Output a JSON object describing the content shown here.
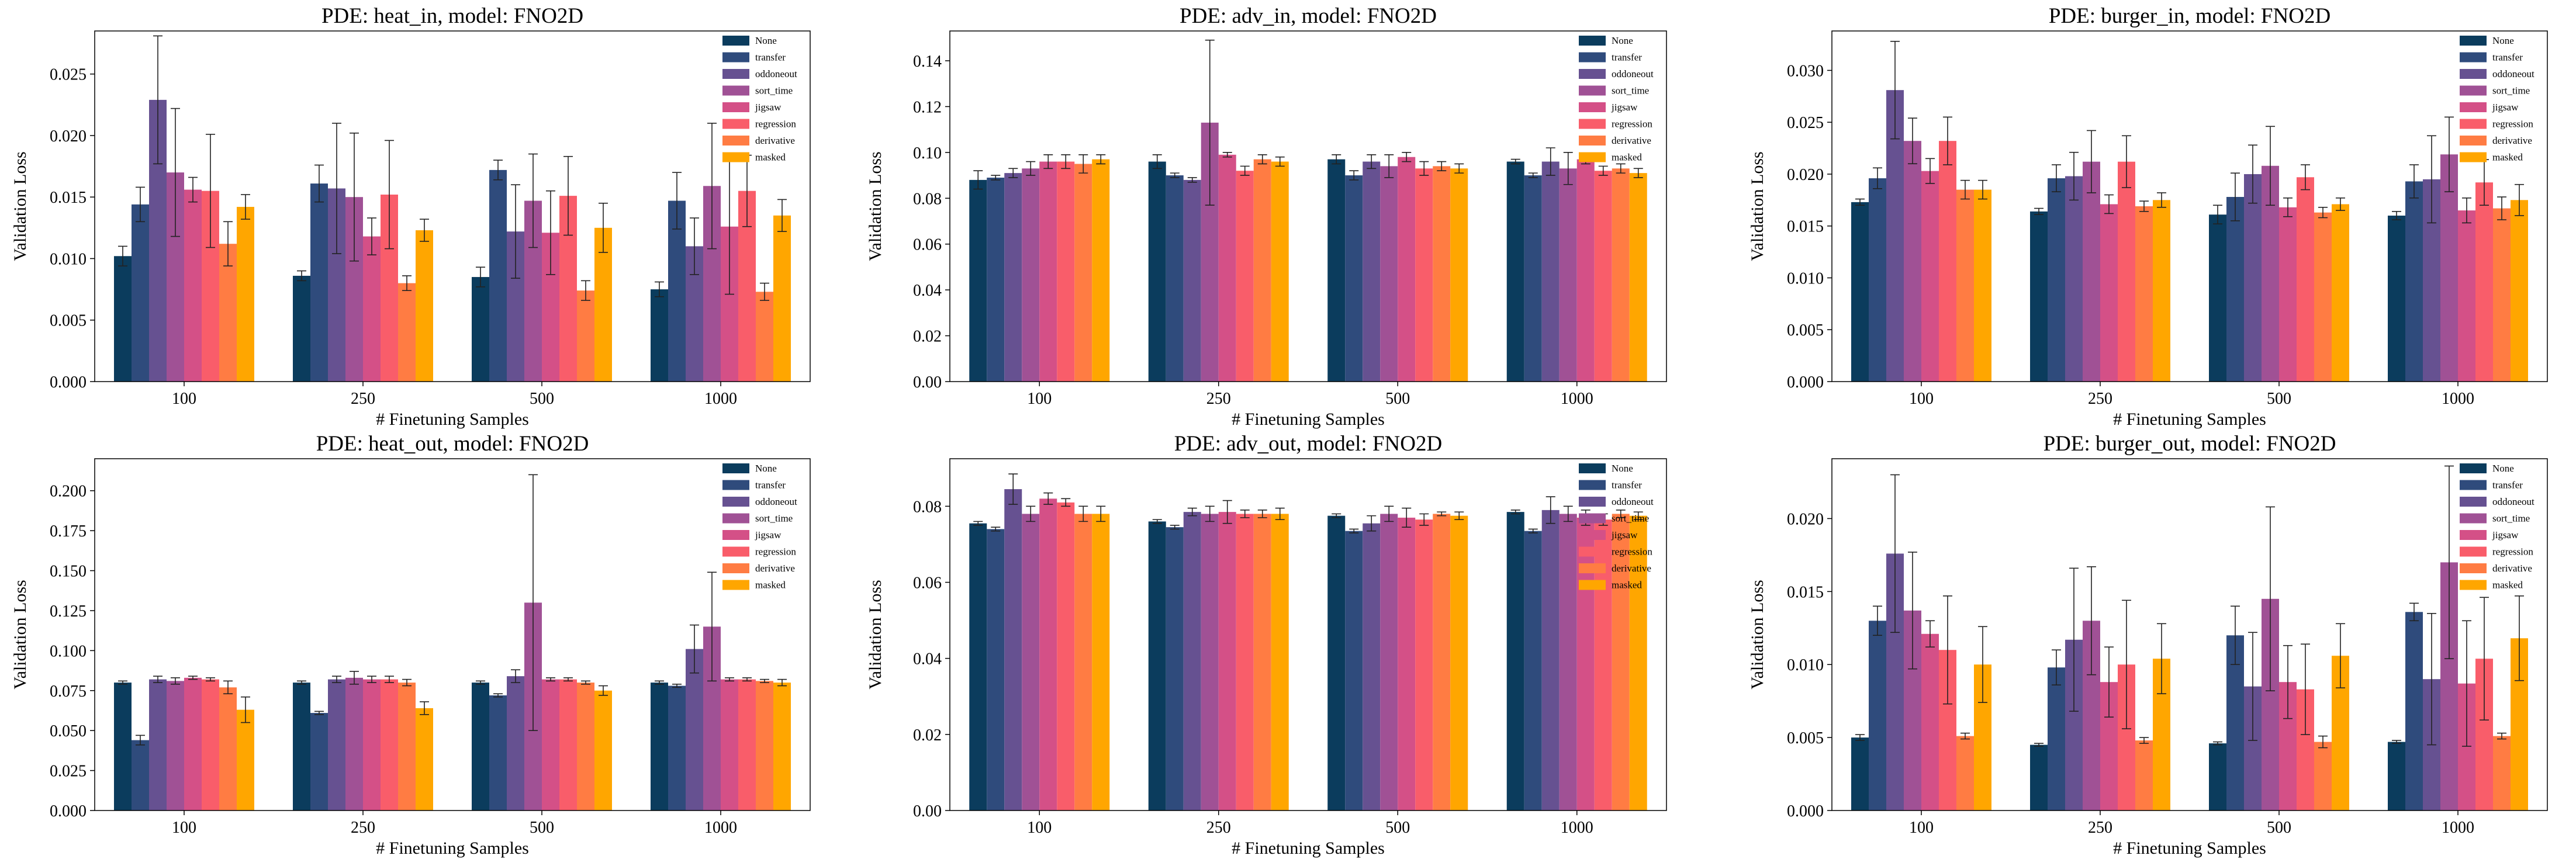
{
  "legend_labels": [
    "None",
    "transfer",
    "oddoneout",
    "sort_time",
    "jigsaw",
    "regression",
    "derivative",
    "masked"
  ],
  "colors": [
    "#0b3c5d",
    "#2f4b7c",
    "#665191",
    "#a05195",
    "#d45087",
    "#f95d6a",
    "#ff7c43",
    "#ffa600"
  ],
  "chart_data": [
    {
      "type": "bar",
      "title": "PDE: heat_in, model: FNO2D",
      "xlabel": "# Finetuning Samples",
      "ylabel": "Validation Loss",
      "ylim": [
        0,
        0.0285
      ],
      "yticks": [
        0.0,
        0.005,
        0.01,
        0.015,
        0.02,
        0.025
      ],
      "ytick_labels": [
        "0.000",
        "0.005",
        "0.010",
        "0.015",
        "0.020",
        "0.025"
      ],
      "categories": [
        "100",
        "250",
        "500",
        "1000"
      ],
      "series": [
        {
          "name": "None",
          "values": [
            0.0102,
            0.0086,
            0.0085,
            0.0075
          ],
          "errors": [
            0.0008,
            0.0004,
            0.0008,
            0.0006
          ]
        },
        {
          "name": "transfer",
          "values": [
            0.0144,
            0.0161,
            0.0172,
            0.0147
          ],
          "errors": [
            0.0014,
            0.0015,
            0.0008,
            0.0023
          ]
        },
        {
          "name": "oddoneout",
          "values": [
            0.0229,
            0.0157,
            0.0122,
            0.011
          ],
          "errors": [
            0.0052,
            0.0053,
            0.0038,
            0.0023
          ]
        },
        {
          "name": "sort_time",
          "values": [
            0.017,
            0.015,
            0.0147,
            0.0159
          ],
          "errors": [
            0.0052,
            0.0052,
            0.0038,
            0.0051
          ]
        },
        {
          "name": "jigsaw",
          "values": [
            0.0156,
            0.0118,
            0.0121,
            0.0126
          ],
          "errors": [
            0.001,
            0.0015,
            0.0034,
            0.0055
          ]
        },
        {
          "name": "regression",
          "values": [
            0.0155,
            0.0152,
            0.0151,
            0.0155
          ],
          "errors": [
            0.0046,
            0.0044,
            0.0032,
            0.0029
          ]
        },
        {
          "name": "derivative",
          "values": [
            0.0112,
            0.008,
            0.0074,
            0.0073
          ],
          "errors": [
            0.0018,
            0.0006,
            0.0008,
            0.0007
          ]
        },
        {
          "name": "masked",
          "values": [
            0.0142,
            0.0123,
            0.0125,
            0.0135
          ],
          "errors": [
            0.001,
            0.0009,
            0.002,
            0.0013
          ]
        }
      ]
    },
    {
      "type": "bar",
      "title": "PDE: adv_in, model: FNO2D",
      "xlabel": "# Finetuning Samples",
      "ylabel": "Validation Loss",
      "ylim": [
        0,
        0.153
      ],
      "yticks": [
        0.0,
        0.02,
        0.04,
        0.06,
        0.08,
        0.1,
        0.12,
        0.14
      ],
      "ytick_labels": [
        "0.00",
        "0.02",
        "0.04",
        "0.06",
        "0.08",
        "0.10",
        "0.12",
        "0.14"
      ],
      "categories": [
        "100",
        "250",
        "500",
        "1000"
      ],
      "series": [
        {
          "name": "None",
          "values": [
            0.088,
            0.096,
            0.097,
            0.096
          ],
          "errors": [
            0.004,
            0.003,
            0.002,
            0.001
          ]
        },
        {
          "name": "transfer",
          "values": [
            0.089,
            0.09,
            0.09,
            0.09
          ],
          "errors": [
            0.001,
            0.001,
            0.002,
            0.001
          ]
        },
        {
          "name": "oddoneout",
          "values": [
            0.091,
            0.088,
            0.096,
            0.096
          ],
          "errors": [
            0.002,
            0.001,
            0.003,
            0.006
          ]
        },
        {
          "name": "sort_time",
          "values": [
            0.093,
            0.113,
            0.094,
            0.093
          ],
          "errors": [
            0.003,
            0.036,
            0.005,
            0.007
          ]
        },
        {
          "name": "jigsaw",
          "values": [
            0.096,
            0.099,
            0.098,
            0.097
          ],
          "errors": [
            0.003,
            0.001,
            0.002,
            0.002
          ]
        },
        {
          "name": "regression",
          "values": [
            0.096,
            0.092,
            0.093,
            0.092
          ],
          "errors": [
            0.003,
            0.002,
            0.003,
            0.002
          ]
        },
        {
          "name": "derivative",
          "values": [
            0.095,
            0.097,
            0.094,
            0.093
          ],
          "errors": [
            0.004,
            0.002,
            0.002,
            0.002
          ]
        },
        {
          "name": "masked",
          "values": [
            0.097,
            0.096,
            0.093,
            0.091
          ],
          "errors": [
            0.002,
            0.002,
            0.002,
            0.002
          ]
        }
      ]
    },
    {
      "type": "bar",
      "title": "PDE: burger_in, model: FNO2D",
      "xlabel": "# Finetuning Samples",
      "ylabel": "Validation Loss",
      "ylim": [
        0,
        0.0338
      ],
      "yticks": [
        0.0,
        0.005,
        0.01,
        0.015,
        0.02,
        0.025,
        0.03
      ],
      "ytick_labels": [
        "0.000",
        "0.005",
        "0.010",
        "0.015",
        "0.020",
        "0.025",
        "0.030"
      ],
      "categories": [
        "100",
        "250",
        "500",
        "1000"
      ],
      "series": [
        {
          "name": "None",
          "values": [
            0.0173,
            0.0164,
            0.0161,
            0.016
          ],
          "errors": [
            0.0003,
            0.0003,
            0.0009,
            0.0004
          ]
        },
        {
          "name": "transfer",
          "values": [
            0.0196,
            0.0196,
            0.0178,
            0.0193
          ],
          "errors": [
            0.001,
            0.0013,
            0.0023,
            0.0016
          ]
        },
        {
          "name": "oddoneout",
          "values": [
            0.0281,
            0.0198,
            0.02,
            0.0195
          ],
          "errors": [
            0.0047,
            0.0023,
            0.0028,
            0.0042
          ]
        },
        {
          "name": "sort_time",
          "values": [
            0.0232,
            0.0212,
            0.0208,
            0.0219
          ],
          "errors": [
            0.0022,
            0.003,
            0.0038,
            0.0036
          ]
        },
        {
          "name": "jigsaw",
          "values": [
            0.0203,
            0.0171,
            0.0168,
            0.0165
          ],
          "errors": [
            0.0012,
            0.0009,
            0.0009,
            0.0012
          ]
        },
        {
          "name": "regression",
          "values": [
            0.0232,
            0.0212,
            0.0197,
            0.0192
          ],
          "errors": [
            0.0023,
            0.0025,
            0.0012,
            0.0022
          ]
        },
        {
          "name": "derivative",
          "values": [
            0.0185,
            0.0169,
            0.0163,
            0.0167
          ],
          "errors": [
            0.0009,
            0.0005,
            0.0005,
            0.0011
          ]
        },
        {
          "name": "masked",
          "values": [
            0.0185,
            0.0175,
            0.0171,
            0.0175
          ],
          "errors": [
            0.0009,
            0.0007,
            0.0006,
            0.0015
          ]
        }
      ]
    },
    {
      "type": "bar",
      "title": "PDE: heat_out, model: FNO2D",
      "xlabel": "# Finetuning Samples",
      "ylabel": "Validation Loss",
      "ylim": [
        0,
        0.22
      ],
      "yticks": [
        0.0,
        0.025,
        0.05,
        0.075,
        0.1,
        0.125,
        0.15,
        0.175,
        0.2
      ],
      "ytick_labels": [
        "0.000",
        "0.025",
        "0.050",
        "0.075",
        "0.100",
        "0.125",
        "0.150",
        "0.175",
        "0.200"
      ],
      "categories": [
        "100",
        "250",
        "500",
        "1000"
      ],
      "series": [
        {
          "name": "None",
          "values": [
            0.08,
            0.08,
            0.08,
            0.08
          ],
          "errors": [
            0.001,
            0.001,
            0.001,
            0.001
          ]
        },
        {
          "name": "transfer",
          "values": [
            0.044,
            0.061,
            0.072,
            0.078
          ],
          "errors": [
            0.003,
            0.001,
            0.001,
            0.001
          ]
        },
        {
          "name": "oddoneout",
          "values": [
            0.082,
            0.082,
            0.084,
            0.101
          ],
          "errors": [
            0.002,
            0.002,
            0.004,
            0.015
          ]
        },
        {
          "name": "sort_time",
          "values": [
            0.081,
            0.083,
            0.13,
            0.115
          ],
          "errors": [
            0.002,
            0.004,
            0.08,
            0.034
          ]
        },
        {
          "name": "jigsaw",
          "values": [
            0.083,
            0.082,
            0.082,
            0.082
          ],
          "errors": [
            0.001,
            0.002,
            0.001,
            0.001
          ]
        },
        {
          "name": "regression",
          "values": [
            0.082,
            0.082,
            0.082,
            0.082
          ],
          "errors": [
            0.001,
            0.002,
            0.001,
            0.001
          ]
        },
        {
          "name": "derivative",
          "values": [
            0.077,
            0.08,
            0.08,
            0.081
          ],
          "errors": [
            0.004,
            0.002,
            0.001,
            0.001
          ]
        },
        {
          "name": "masked",
          "values": [
            0.063,
            0.064,
            0.075,
            0.08
          ],
          "errors": [
            0.008,
            0.004,
            0.003,
            0.002
          ]
        }
      ]
    },
    {
      "type": "bar",
      "title": "PDE: adv_out, model: FNO2D",
      "xlabel": "# Finetuning Samples",
      "ylabel": "Validation Loss",
      "ylim": [
        0,
        0.0925
      ],
      "yticks": [
        0.0,
        0.02,
        0.04,
        0.06,
        0.08
      ],
      "ytick_labels": [
        "0.00",
        "0.02",
        "0.04",
        "0.06",
        "0.08"
      ],
      "categories": [
        "100",
        "250",
        "500",
        "1000"
      ],
      "series": [
        {
          "name": "None",
          "values": [
            0.0755,
            0.076,
            0.0775,
            0.0785
          ],
          "errors": [
            0.0005,
            0.0005,
            0.0005,
            0.0005
          ]
        },
        {
          "name": "transfer",
          "values": [
            0.074,
            0.0745,
            0.0735,
            0.0735
          ],
          "errors": [
            0.0005,
            0.0005,
            0.0005,
            0.0005
          ]
        },
        {
          "name": "oddoneout",
          "values": [
            0.0845,
            0.0785,
            0.0755,
            0.079
          ],
          "errors": [
            0.004,
            0.001,
            0.002,
            0.0035
          ]
        },
        {
          "name": "sort_time",
          "values": [
            0.078,
            0.078,
            0.078,
            0.078
          ],
          "errors": [
            0.002,
            0.002,
            0.002,
            0.002
          ]
        },
        {
          "name": "jigsaw",
          "values": [
            0.082,
            0.0785,
            0.077,
            0.077
          ],
          "errors": [
            0.0015,
            0.003,
            0.0025,
            0.002
          ]
        },
        {
          "name": "regression",
          "values": [
            0.081,
            0.078,
            0.0765,
            0.0765
          ],
          "errors": [
            0.001,
            0.001,
            0.0015,
            0.0015
          ]
        },
        {
          "name": "derivative",
          "values": [
            0.078,
            0.078,
            0.078,
            0.078
          ],
          "errors": [
            0.002,
            0.001,
            0.0005,
            0.001
          ]
        },
        {
          "name": "masked",
          "values": [
            0.078,
            0.078,
            0.0775,
            0.0775
          ],
          "errors": [
            0.002,
            0.0015,
            0.001,
            0.001
          ]
        }
      ]
    },
    {
      "type": "bar",
      "title": "PDE: burger_out, model: FNO2D",
      "xlabel": "# Finetuning Samples",
      "ylabel": "Validation Loss",
      "ylim": [
        0,
        0.0241
      ],
      "yticks": [
        0.0,
        0.005,
        0.01,
        0.015,
        0.02
      ],
      "ytick_labels": [
        "0.000",
        "0.005",
        "0.010",
        "0.015",
        "0.020"
      ],
      "categories": [
        "100",
        "250",
        "500",
        "1000"
      ],
      "series": [
        {
          "name": "None",
          "values": [
            0.005,
            0.0045,
            0.0046,
            0.0047
          ],
          "errors": [
            0.0002,
            0.0001,
            0.0001,
            0.0001
          ]
        },
        {
          "name": "transfer",
          "values": [
            0.013,
            0.0098,
            0.012,
            0.0136
          ],
          "errors": [
            0.001,
            0.0012,
            0.002,
            0.0006
          ]
        },
        {
          "name": "oddoneout",
          "values": [
            0.0176,
            0.0117,
            0.0085,
            0.009
          ],
          "errors": [
            0.0054,
            0.0049,
            0.0037,
            0.0045
          ]
        },
        {
          "name": "sort_time",
          "values": [
            0.0137,
            0.013,
            0.0145,
            0.017
          ],
          "errors": [
            0.004,
            0.0037,
            0.0063,
            0.0066
          ]
        },
        {
          "name": "jigsaw",
          "values": [
            0.0121,
            0.0088,
            0.0088,
            0.0087
          ],
          "errors": [
            0.0009,
            0.0024,
            0.0025,
            0.0043
          ]
        },
        {
          "name": "regression",
          "values": [
            0.011,
            0.01,
            0.0083,
            0.0104
          ],
          "errors": [
            0.0037,
            0.0044,
            0.0031,
            0.0042
          ]
        },
        {
          "name": "derivative",
          "values": [
            0.0051,
            0.0048,
            0.0047,
            0.0051
          ],
          "errors": [
            0.0002,
            0.0002,
            0.0004,
            0.0002
          ]
        },
        {
          "name": "masked",
          "values": [
            0.01,
            0.0104,
            0.0106,
            0.0118
          ],
          "errors": [
            0.0026,
            0.0024,
            0.0022,
            0.0029
          ]
        }
      ]
    }
  ]
}
